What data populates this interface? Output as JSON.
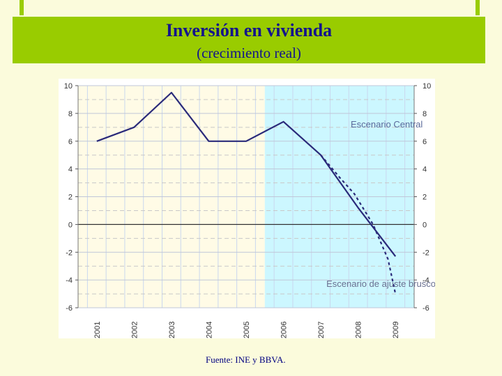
{
  "header": {
    "title": "Inversión en vivienda",
    "subtitle": "(crecimiento real)"
  },
  "footer": {
    "source": "Fuente: INE y BBVA."
  },
  "colors": {
    "title_band": "#99cc00",
    "title_text": "#14148c",
    "scenario_shade": "#ccf7ff",
    "series_line": "#2a2a7a"
  },
  "chart_data": {
    "type": "line",
    "x_tick_labels": [
      "2001",
      "2002",
      "2003",
      "2004",
      "2005",
      "2006",
      "2007",
      "2008",
      "2009"
    ],
    "y_ticks": [
      10,
      8,
      6,
      4,
      2,
      0,
      -2,
      -4,
      -6
    ],
    "y_tick_labels": [
      "10",
      "8",
      "6",
      "4",
      "2",
      "0",
      "-2",
      "-4",
      "-6"
    ],
    "ylim": [
      -6,
      10
    ],
    "xlim": [
      2000.5,
      2009.5
    ],
    "shaded_region": {
      "from": 2005.5,
      "to": 2009.5,
      "color": "#ccf7ff"
    },
    "grid": true,
    "series": [
      {
        "name": "Escenario Central",
        "style": "solid",
        "points": [
          [
            2001.0,
            6.0
          ],
          [
            2002.0,
            7.0
          ],
          [
            2003.0,
            9.5
          ],
          [
            2004.0,
            6.0
          ],
          [
            2005.0,
            6.0
          ],
          [
            2006.0,
            7.4
          ],
          [
            2007.0,
            5.0
          ],
          [
            2008.0,
            1.2
          ],
          [
            2009.0,
            -2.3
          ]
        ]
      },
      {
        "name": "Escenario de ajuste brusco",
        "style": "dashed",
        "points": [
          [
            2007.0,
            5.0
          ],
          [
            2007.5,
            3.4
          ],
          [
            2007.9,
            2.2
          ],
          [
            2008.4,
            0.0
          ],
          [
            2008.8,
            -2.5
          ],
          [
            2009.0,
            -5.0
          ]
        ]
      }
    ],
    "annotations": [
      {
        "text": "Escenario Central",
        "x": 2007.8,
        "y": 7.0
      },
      {
        "text": "Escenario de ajuste brusco",
        "x": 2007.15,
        "y": -4.5
      }
    ]
  }
}
